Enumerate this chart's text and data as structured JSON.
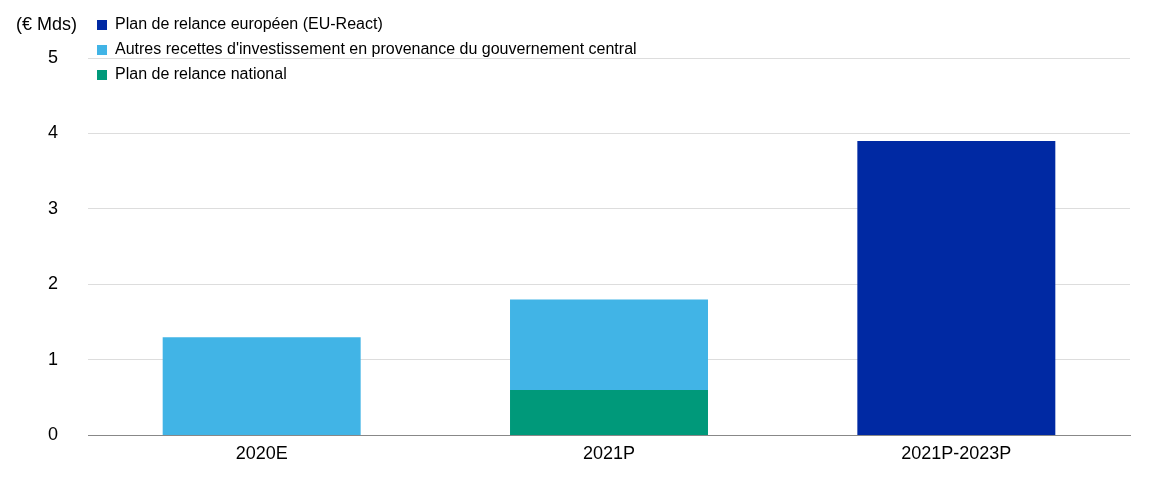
{
  "chart_data": {
    "type": "bar",
    "ylabel": "(€ Mds)",
    "categories": [
      "2020E",
      "2021P",
      "2021P-2023P"
    ],
    "stacked": true,
    "series": [
      {
        "name": "Plan de relance national",
        "color": "#00997a",
        "values": [
          null,
          0.6,
          null
        ]
      },
      {
        "name": "Autres recettes d'investissement en provenance du gouvernement central",
        "color": "#41b4e6",
        "values": [
          1.3,
          1.2,
          null
        ]
      },
      {
        "name": "Plan de relance européen (EU-React)",
        "color": "#0029a3",
        "values": [
          null,
          null,
          3.9
        ]
      }
    ],
    "ylim": [
      0,
      5
    ],
    "yticks": [
      0,
      1,
      2,
      3,
      4,
      5
    ],
    "grid": "y",
    "legend": "top left"
  }
}
